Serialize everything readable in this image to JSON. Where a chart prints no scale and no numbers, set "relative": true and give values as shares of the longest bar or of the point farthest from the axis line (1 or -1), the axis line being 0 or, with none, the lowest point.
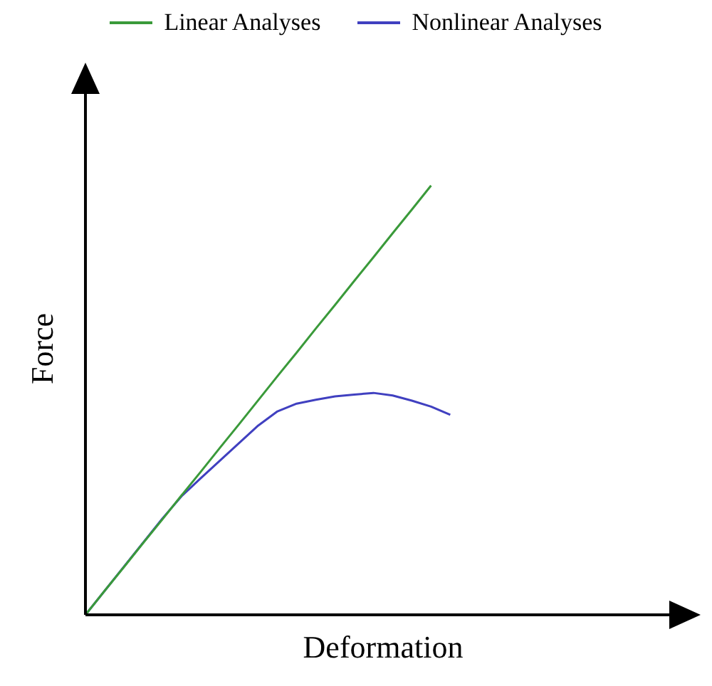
{
  "chart_data": {
    "type": "line",
    "relative": true,
    "xlabel": "Deformation",
    "ylabel": "Force",
    "legend": "top",
    "marker": "none",
    "line_style": "solid",
    "categories": [
      null,
      null,
      null,
      null,
      null,
      null,
      null,
      null,
      null,
      null,
      null,
      null,
      null,
      null,
      null,
      null,
      null,
      null,
      null,
      null,
      null,
      null,
      null,
      null,
      null,
      null,
      null,
      null,
      null,
      null,
      null,
      null
    ],
    "series": [
      {
        "name": "Linear Analyses",
        "color": "#3a9a3a",
        "values": [
          0,
          0.056,
          0.111,
          0.167,
          0.222,
          0.278,
          0.333,
          0.389,
          0.444,
          0.5,
          0.556,
          0.611,
          0.667,
          0.722,
          0.778,
          0.833,
          0.889,
          0.944,
          1,
          null,
          null,
          null,
          null,
          null,
          null,
          null,
          null,
          null,
          null,
          null,
          null,
          null
        ]
      },
      {
        "name": "Nonlinear Analyses",
        "color": "#4040c0",
        "values": [
          0,
          0.056,
          0.112,
          0.168,
          0.224,
          0.276,
          0.318,
          0.359,
          0.4,
          0.441,
          0.474,
          0.492,
          0.501,
          0.509,
          0.513,
          0.517,
          0.511,
          0.499,
          0.485,
          0.466,
          null,
          null,
          null,
          null,
          null,
          null,
          null,
          null,
          null,
          null,
          null,
          null
        ]
      }
    ]
  }
}
